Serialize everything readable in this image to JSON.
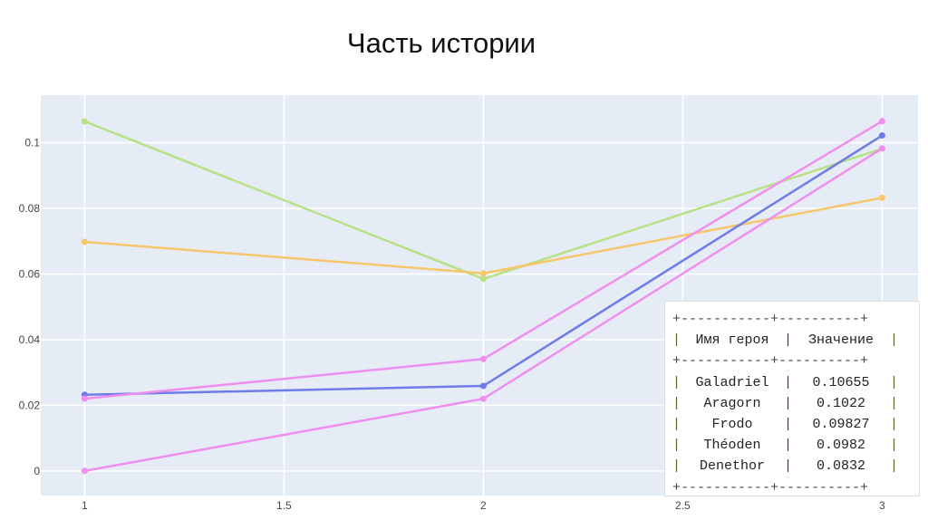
{
  "slide": {
    "title": "Часть истории"
  },
  "chart_data": {
    "type": "line",
    "x": [
      1,
      2,
      3
    ],
    "xticks": [
      "1",
      "1.5",
      "2",
      "2.5",
      "3"
    ],
    "yticks": [
      "0",
      "0.02",
      "0.04",
      "0.06",
      "0.08",
      "0.1"
    ],
    "xlim": [
      0.89,
      3.09
    ],
    "ylim": [
      -0.0075,
      0.1145
    ],
    "grid": true,
    "series": [
      {
        "values": [
          0.1065,
          0.0585,
          0.0982
        ],
        "color": "#b8e186"
      },
      {
        "values": [
          0.0698,
          0.0602,
          0.0832
        ],
        "color": "#f6c66b"
      },
      {
        "values": [
          0.0232,
          0.0259,
          0.1022
        ],
        "color": "#6f7ce8"
      },
      {
        "values": [
          0.022,
          0.0341,
          0.10655
        ],
        "color": "#f08ef0"
      },
      {
        "values": [
          0.0,
          0.022,
          0.09827
        ],
        "color": "#f08ef0"
      }
    ]
  },
  "table": {
    "border": "+-----------+----------+",
    "header": [
      "Имя героя",
      "Значение"
    ],
    "rows": [
      [
        "Galadriel",
        "0.10655"
      ],
      [
        "Aragorn",
        "0.1022"
      ],
      [
        "Frodo",
        "0.09827"
      ],
      [
        "Théoden",
        "0.0982"
      ],
      [
        "Denethor",
        "0.0832"
      ]
    ]
  }
}
